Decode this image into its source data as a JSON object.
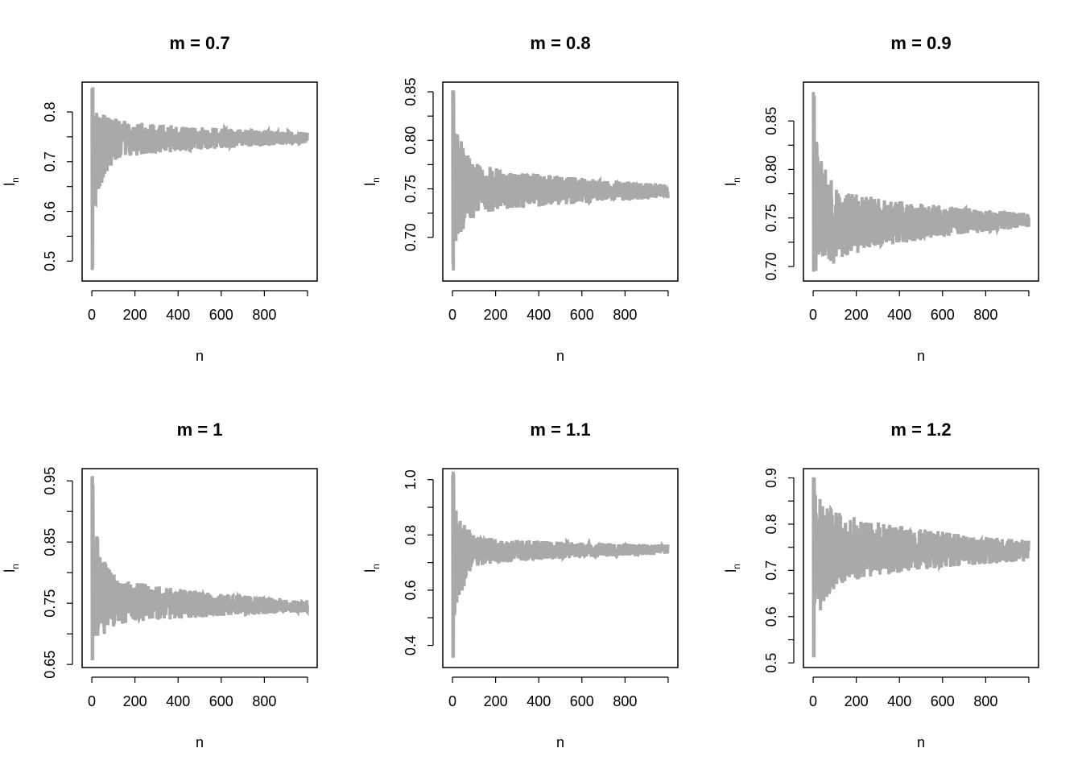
{
  "colors": {
    "series": "#a9a9a9",
    "axis": "#000000",
    "background": "#ffffff"
  },
  "chart_data": [
    {
      "type": "line",
      "title": "m =  0.7",
      "xlabel": "n",
      "ylabel": "l",
      "ylabel_subscript": "n",
      "xlim": [
        -45,
        1045
      ],
      "ylim": [
        0.46,
        0.86
      ],
      "xticks": [
        "0",
        "200",
        "400",
        "600",
        "800"
      ],
      "yticks": [
        "0.5",
        "0.6",
        "0.7",
        "0.8"
      ],
      "series": [
        {
          "x_range": [
            1,
            1000
          ],
          "start": [
            0.48,
            0.85
          ],
          "band_100": [
            0.7,
            0.79
          ],
          "band_end": [
            0.735,
            0.76
          ],
          "center": 0.745
        }
      ],
      "grid": false,
      "legend": "none"
    },
    {
      "type": "line",
      "title": "m =  0.8",
      "xlabel": "n",
      "ylabel": "l",
      "ylabel_subscript": "n",
      "xlim": [
        -45,
        1045
      ],
      "ylim": [
        0.655,
        0.86
      ],
      "xticks": [
        "0",
        "200",
        "400",
        "600",
        "800"
      ],
      "yticks": [
        "0.70",
        "0.75",
        "0.80",
        "0.85"
      ],
      "series": [
        {
          "x_range": [
            1,
            1000
          ],
          "start": [
            0.665,
            0.855
          ],
          "band_100": [
            0.72,
            0.78
          ],
          "band_end": [
            0.74,
            0.755
          ],
          "center": 0.748
        }
      ],
      "grid": false,
      "legend": "none"
    },
    {
      "type": "line",
      "title": "m =  0.9",
      "xlabel": "n",
      "ylabel": "l",
      "ylabel_subscript": "n",
      "xlim": [
        -45,
        1045
      ],
      "ylim": [
        0.685,
        0.89
      ],
      "xticks": [
        "0",
        "200",
        "400",
        "600",
        "800"
      ],
      "yticks": [
        "0.70",
        "0.75",
        "0.80",
        "0.85"
      ],
      "series": [
        {
          "x_range": [
            1,
            1000
          ],
          "start": [
            0.69,
            0.885
          ],
          "band_100": [
            0.7,
            0.785
          ],
          "band_end": [
            0.74,
            0.755
          ],
          "center": 0.745
        }
      ],
      "grid": false,
      "legend": "none"
    },
    {
      "type": "line",
      "title": "m =  1",
      "xlabel": "n",
      "ylabel": "l",
      "ylabel_subscript": "n",
      "xlim": [
        -45,
        1045
      ],
      "ylim": [
        0.645,
        0.97
      ],
      "xticks": [
        "0",
        "200",
        "400",
        "600",
        "800"
      ],
      "yticks": [
        "0.65",
        "0.75",
        "0.85",
        "0.95"
      ],
      "series": [
        {
          "x_range": [
            1,
            1000
          ],
          "start": [
            0.65,
            0.965
          ],
          "band_100": [
            0.71,
            0.8
          ],
          "band_end": [
            0.735,
            0.755
          ],
          "center": 0.745
        }
      ],
      "grid": false,
      "legend": "none"
    },
    {
      "type": "line",
      "title": "m =  1.1",
      "xlabel": "n",
      "ylabel": "l",
      "ylabel_subscript": "n",
      "xlim": [
        -45,
        1045
      ],
      "ylim": [
        0.32,
        1.04
      ],
      "xticks": [
        "0",
        "200",
        "400",
        "600",
        "800"
      ],
      "yticks": [
        "0.4",
        "0.6",
        "0.8",
        "1.0"
      ],
      "series": [
        {
          "x_range": [
            1,
            1000
          ],
          "start": [
            0.33,
            1.03
          ],
          "band_100": [
            0.68,
            0.8
          ],
          "band_end": [
            0.73,
            0.765
          ],
          "center": 0.75
        }
      ],
      "grid": false,
      "legend": "none"
    },
    {
      "type": "line",
      "title": "m =  1.2",
      "xlabel": "n",
      "ylabel": "l",
      "ylabel_subscript": "n",
      "xlim": [
        -45,
        1045
      ],
      "ylim": [
        0.49,
        0.92
      ],
      "xticks": [
        "0",
        "200",
        "400",
        "600",
        "800"
      ],
      "yticks": [
        "0.5",
        "0.6",
        "0.7",
        "0.8",
        "0.9"
      ],
      "series": [
        {
          "x_range": [
            1,
            1000
          ],
          "start": [
            0.5,
            0.91
          ],
          "band_100": [
            0.66,
            0.84
          ],
          "band_end": [
            0.72,
            0.765
          ],
          "center": 0.745
        }
      ],
      "grid": false,
      "legend": "none"
    }
  ]
}
